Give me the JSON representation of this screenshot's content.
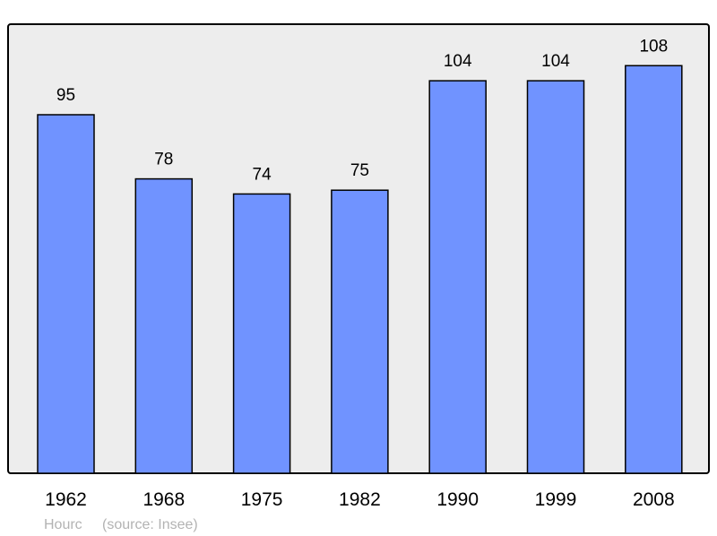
{
  "chart_data": {
    "type": "bar",
    "categories": [
      "1962",
      "1968",
      "1975",
      "1982",
      "1990",
      "1999",
      "2008"
    ],
    "values": [
      95,
      78,
      74,
      75,
      104,
      104,
      108
    ],
    "data_labels": [
      "95",
      "78",
      "74",
      "75",
      "104",
      "104",
      "108"
    ],
    "title": "",
    "xlabel": "",
    "ylabel": "",
    "ylim": [
      0,
      118.75
    ],
    "grid": false,
    "colors": {
      "bar": "#7093ff",
      "plot_background": "#ededed",
      "border": "#000000"
    }
  },
  "footer": {
    "place": "Hourc",
    "source": "(source: Insee)"
  }
}
